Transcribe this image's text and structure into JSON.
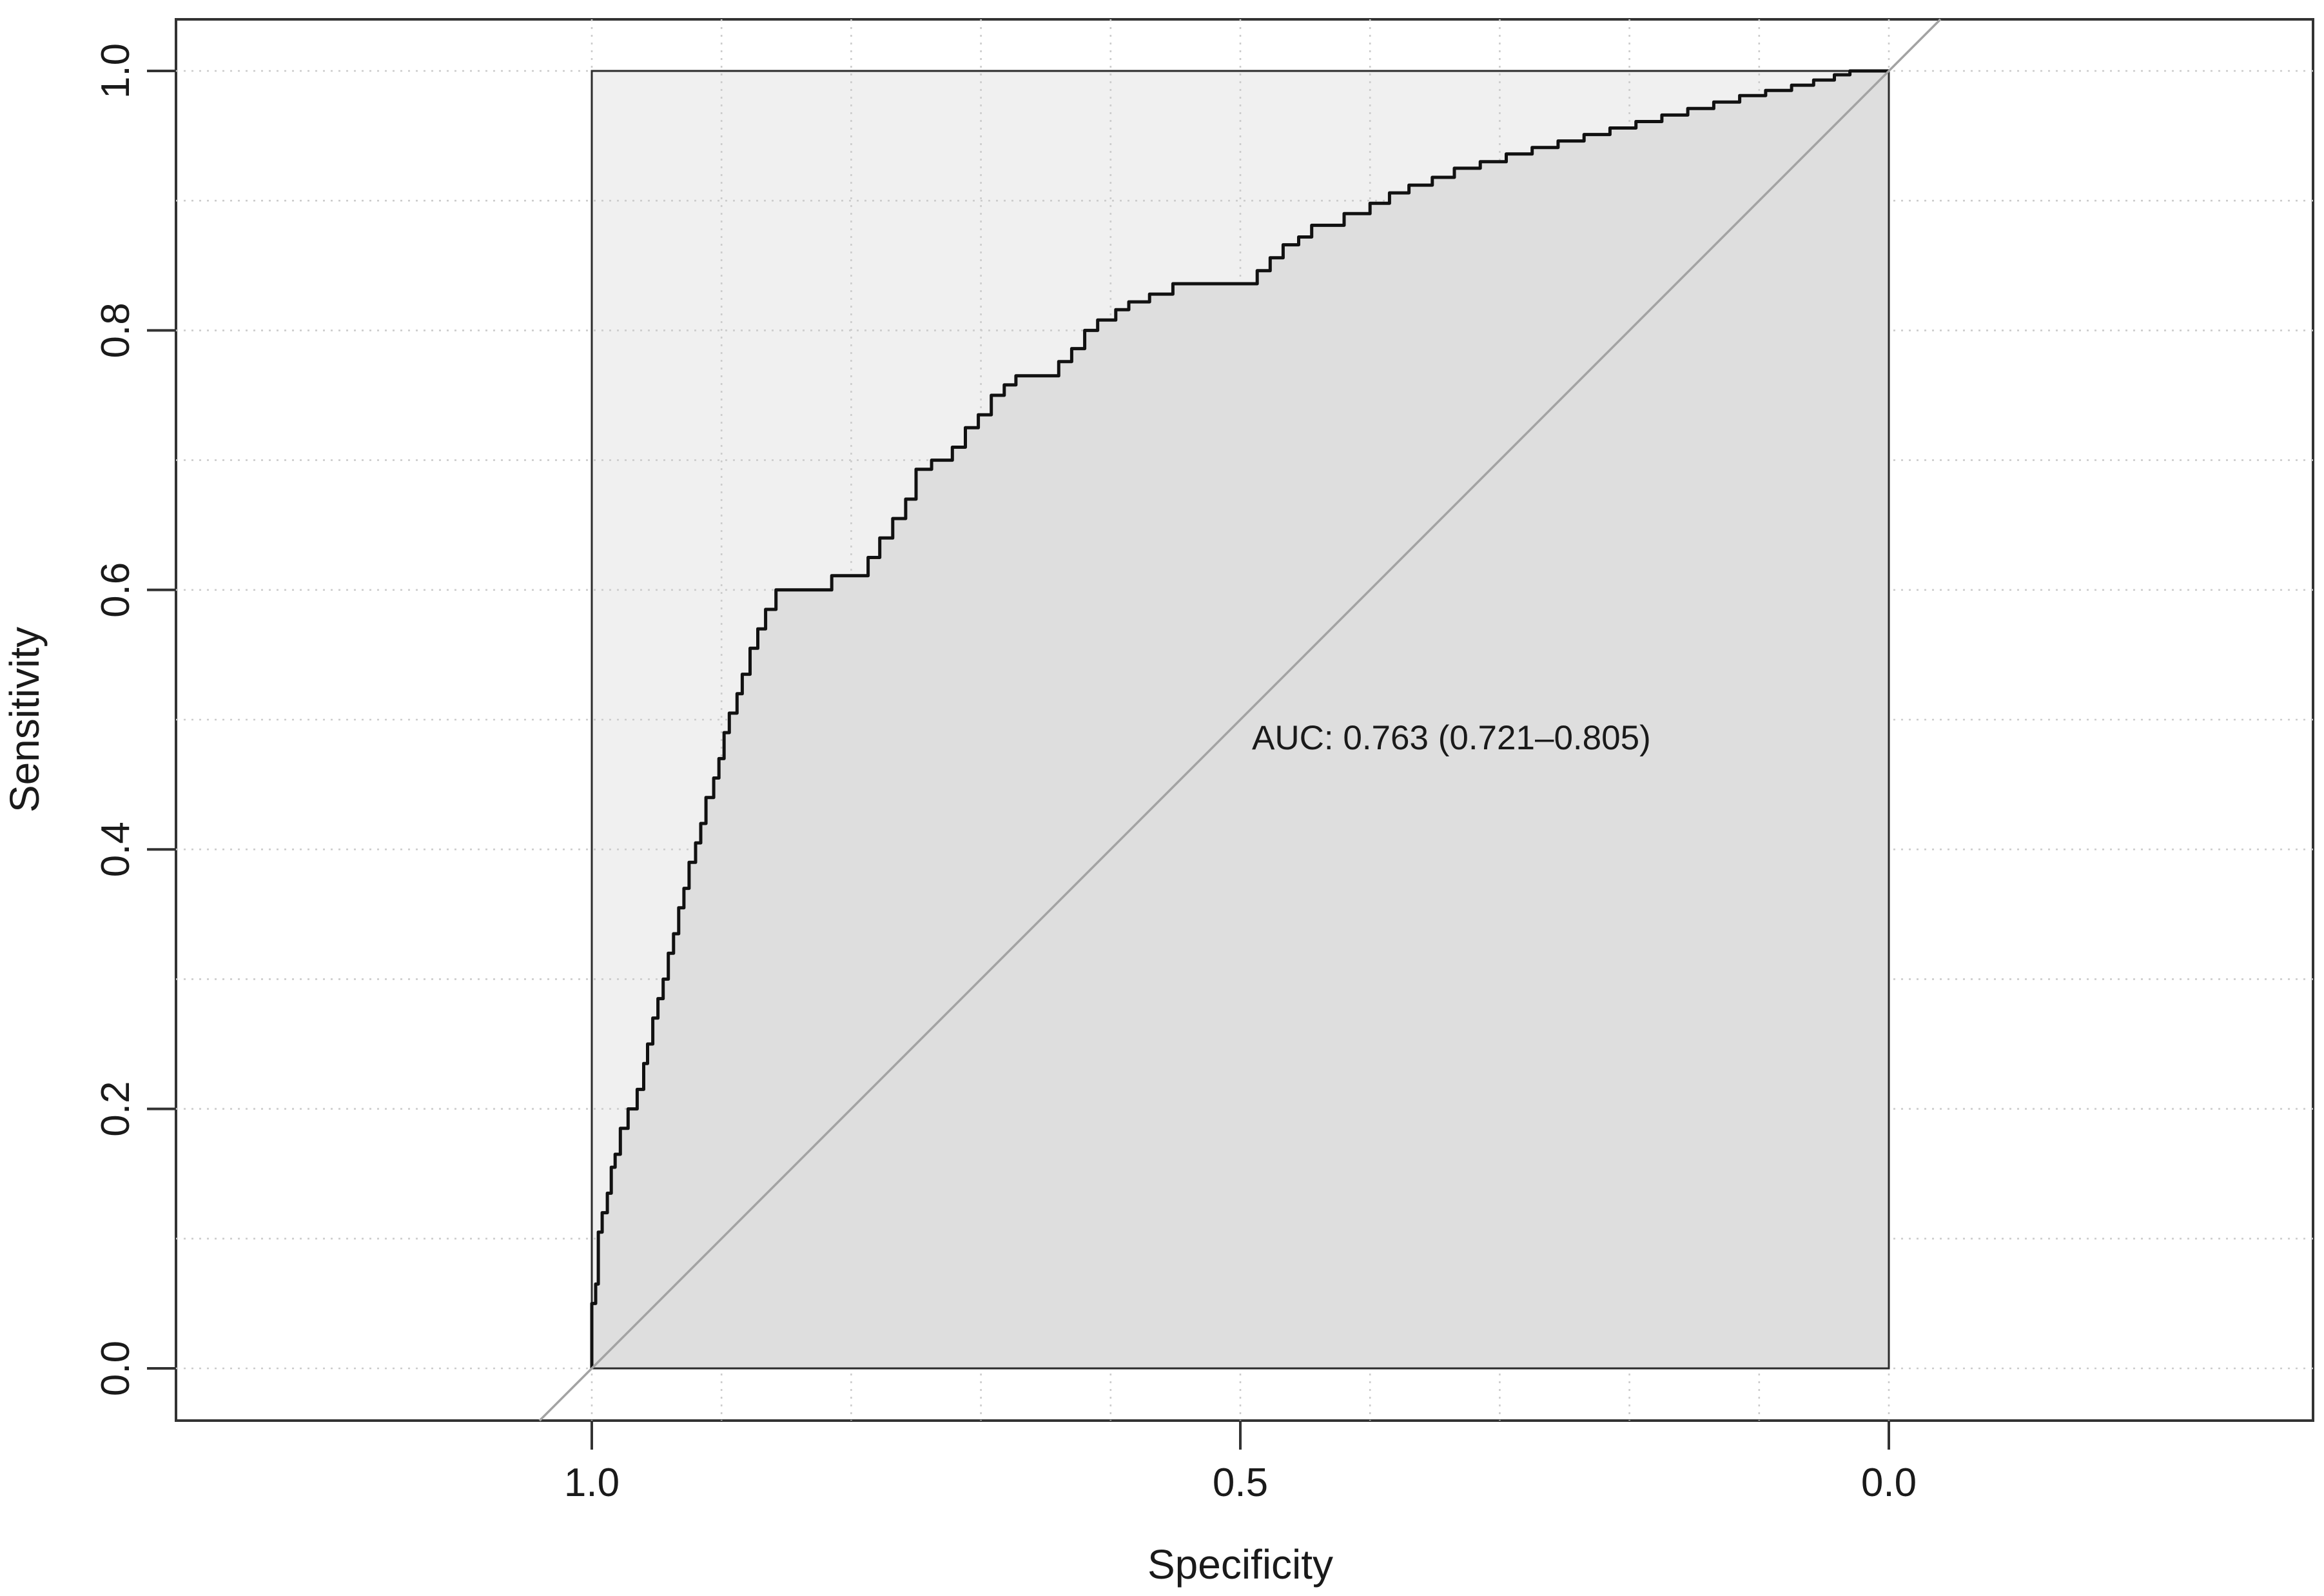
{
  "chart_data": {
    "type": "line",
    "subtype": "roc-curve",
    "title": "",
    "xlabel": "Specificity",
    "ylabel": "Sensitivity",
    "x_axis_reversed": true,
    "xlim": [
      1.0,
      0.0
    ],
    "ylim": [
      0.0,
      1.0
    ],
    "x_ticks": [
      {
        "value": 1.0,
        "label": "1.0"
      },
      {
        "value": 0.5,
        "label": "0.5"
      },
      {
        "value": 0.0,
        "label": "0.0"
      }
    ],
    "y_ticks": [
      {
        "value": 0.0,
        "label": "0.0"
      },
      {
        "value": 0.2,
        "label": "0.2"
      },
      {
        "value": 0.4,
        "label": "0.4"
      },
      {
        "value": 0.6,
        "label": "0.6"
      },
      {
        "value": 0.8,
        "label": "0.8"
      },
      {
        "value": 1.0,
        "label": "1.0"
      }
    ],
    "grid": true,
    "grid_interval": 0.1,
    "legend_position": "none",
    "diagonal_reference_line": true,
    "max_auc_polygon": true,
    "auc_polygon": true,
    "auc": 0.763,
    "auc_ci_low": 0.721,
    "auc_ci_high": 0.805,
    "annotation": "AUC: 0.763 (0.721–0.805)",
    "series": [
      {
        "name": "ROC curve",
        "x_name": "specificity",
        "y_name": "sensitivity",
        "points": [
          [
            1.0,
            0.0
          ],
          [
            1.0,
            0.05
          ],
          [
            0.997,
            0.05
          ],
          [
            0.997,
            0.065
          ],
          [
            0.995,
            0.065
          ],
          [
            0.995,
            0.105
          ],
          [
            0.992,
            0.105
          ],
          [
            0.992,
            0.12
          ],
          [
            0.988,
            0.12
          ],
          [
            0.988,
            0.135
          ],
          [
            0.985,
            0.135
          ],
          [
            0.985,
            0.155
          ],
          [
            0.982,
            0.155
          ],
          [
            0.982,
            0.165
          ],
          [
            0.978,
            0.165
          ],
          [
            0.978,
            0.185
          ],
          [
            0.972,
            0.185
          ],
          [
            0.972,
            0.2
          ],
          [
            0.965,
            0.2
          ],
          [
            0.965,
            0.215
          ],
          [
            0.96,
            0.215
          ],
          [
            0.96,
            0.235
          ],
          [
            0.957,
            0.235
          ],
          [
            0.957,
            0.25
          ],
          [
            0.953,
            0.25
          ],
          [
            0.953,
            0.27
          ],
          [
            0.949,
            0.27
          ],
          [
            0.949,
            0.285
          ],
          [
            0.945,
            0.285
          ],
          [
            0.945,
            0.3
          ],
          [
            0.941,
            0.3
          ],
          [
            0.941,
            0.32
          ],
          [
            0.937,
            0.32
          ],
          [
            0.937,
            0.335
          ],
          [
            0.933,
            0.335
          ],
          [
            0.933,
            0.355
          ],
          [
            0.929,
            0.355
          ],
          [
            0.929,
            0.37
          ],
          [
            0.925,
            0.37
          ],
          [
            0.925,
            0.39
          ],
          [
            0.92,
            0.39
          ],
          [
            0.92,
            0.405
          ],
          [
            0.916,
            0.405
          ],
          [
            0.916,
            0.42
          ],
          [
            0.912,
            0.42
          ],
          [
            0.912,
            0.44
          ],
          [
            0.906,
            0.44
          ],
          [
            0.906,
            0.455
          ],
          [
            0.902,
            0.455
          ],
          [
            0.902,
            0.47
          ],
          [
            0.898,
            0.47
          ],
          [
            0.898,
            0.49
          ],
          [
            0.894,
            0.49
          ],
          [
            0.894,
            0.505
          ],
          [
            0.888,
            0.505
          ],
          [
            0.888,
            0.52
          ],
          [
            0.884,
            0.52
          ],
          [
            0.884,
            0.535
          ],
          [
            0.878,
            0.535
          ],
          [
            0.878,
            0.555
          ],
          [
            0.872,
            0.555
          ],
          [
            0.872,
            0.57
          ],
          [
            0.866,
            0.57
          ],
          [
            0.866,
            0.585
          ],
          [
            0.858,
            0.585
          ],
          [
            0.858,
            0.6
          ],
          [
            0.815,
            0.6
          ],
          [
            0.815,
            0.611
          ],
          [
            0.787,
            0.611
          ],
          [
            0.787,
            0.625
          ],
          [
            0.778,
            0.625
          ],
          [
            0.778,
            0.64
          ],
          [
            0.768,
            0.64
          ],
          [
            0.768,
            0.655
          ],
          [
            0.758,
            0.655
          ],
          [
            0.758,
            0.67
          ],
          [
            0.75,
            0.67
          ],
          [
            0.75,
            0.693
          ],
          [
            0.738,
            0.693
          ],
          [
            0.738,
            0.7
          ],
          [
            0.722,
            0.7
          ],
          [
            0.722,
            0.71
          ],
          [
            0.712,
            0.71
          ],
          [
            0.712,
            0.725
          ],
          [
            0.702,
            0.725
          ],
          [
            0.702,
            0.735
          ],
          [
            0.692,
            0.735
          ],
          [
            0.692,
            0.75
          ],
          [
            0.682,
            0.75
          ],
          [
            0.682,
            0.758
          ],
          [
            0.673,
            0.758
          ],
          [
            0.673,
            0.765
          ],
          [
            0.64,
            0.765
          ],
          [
            0.64,
            0.776
          ],
          [
            0.63,
            0.776
          ],
          [
            0.63,
            0.786
          ],
          [
            0.62,
            0.786
          ],
          [
            0.62,
            0.8
          ],
          [
            0.61,
            0.8
          ],
          [
            0.61,
            0.808
          ],
          [
            0.596,
            0.808
          ],
          [
            0.596,
            0.816
          ],
          [
            0.586,
            0.816
          ],
          [
            0.586,
            0.822
          ],
          [
            0.57,
            0.822
          ],
          [
            0.57,
            0.828
          ],
          [
            0.552,
            0.828
          ],
          [
            0.552,
            0.836
          ],
          [
            0.487,
            0.836
          ],
          [
            0.487,
            0.846
          ],
          [
            0.477,
            0.846
          ],
          [
            0.477,
            0.856
          ],
          [
            0.467,
            0.856
          ],
          [
            0.467,
            0.866
          ],
          [
            0.455,
            0.866
          ],
          [
            0.455,
            0.872
          ],
          [
            0.445,
            0.872
          ],
          [
            0.445,
            0.881
          ],
          [
            0.42,
            0.881
          ],
          [
            0.42,
            0.89
          ],
          [
            0.4,
            0.89
          ],
          [
            0.4,
            0.898
          ],
          [
            0.385,
            0.898
          ],
          [
            0.385,
            0.906
          ],
          [
            0.37,
            0.906
          ],
          [
            0.37,
            0.912
          ],
          [
            0.352,
            0.912
          ],
          [
            0.352,
            0.918
          ],
          [
            0.335,
            0.918
          ],
          [
            0.335,
            0.925
          ],
          [
            0.315,
            0.925
          ],
          [
            0.315,
            0.93
          ],
          [
            0.295,
            0.93
          ],
          [
            0.295,
            0.936
          ],
          [
            0.275,
            0.936
          ],
          [
            0.275,
            0.941
          ],
          [
            0.255,
            0.941
          ],
          [
            0.255,
            0.946
          ],
          [
            0.235,
            0.946
          ],
          [
            0.235,
            0.951
          ],
          [
            0.215,
            0.951
          ],
          [
            0.215,
            0.956
          ],
          [
            0.195,
            0.956
          ],
          [
            0.195,
            0.961
          ],
          [
            0.175,
            0.961
          ],
          [
            0.175,
            0.966
          ],
          [
            0.155,
            0.966
          ],
          [
            0.155,
            0.971
          ],
          [
            0.135,
            0.971
          ],
          [
            0.135,
            0.976
          ],
          [
            0.115,
            0.976
          ],
          [
            0.115,
            0.981
          ],
          [
            0.095,
            0.981
          ],
          [
            0.095,
            0.985
          ],
          [
            0.075,
            0.985
          ],
          [
            0.075,
            0.989
          ],
          [
            0.058,
            0.989
          ],
          [
            0.058,
            0.993
          ],
          [
            0.042,
            0.993
          ],
          [
            0.042,
            0.997
          ],
          [
            0.03,
            0.997
          ],
          [
            0.03,
            1.0
          ],
          [
            0.0,
            1.0
          ]
        ]
      }
    ]
  },
  "colors": {
    "background": "#ffffff",
    "max_area_fill": "#f0f0f0",
    "auc_area_fill": "#dedede",
    "curve": "#111111",
    "box_border": "#2b2b2b",
    "frame": "#333333",
    "diagonal": "#a3a3a3",
    "grid": "#cccccc",
    "text": "#1a1a1a"
  }
}
